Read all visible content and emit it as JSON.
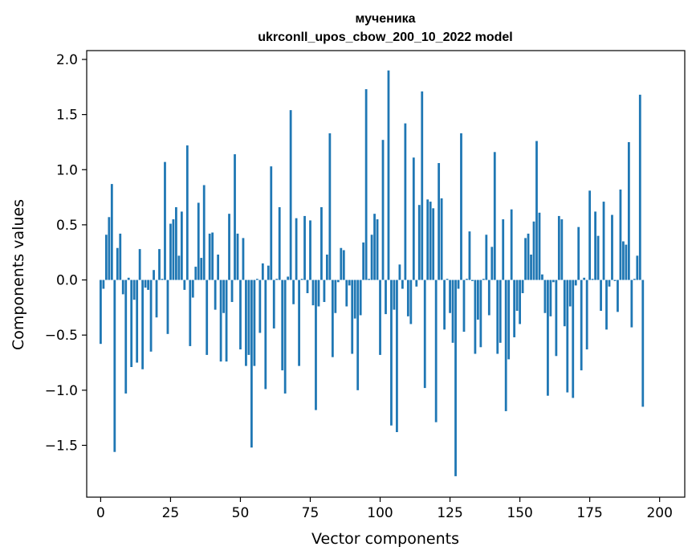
{
  "chart_data": {
    "type": "bar",
    "title": "мученика",
    "subtitle": "ukrconll_upos_cbow_200_10_2022 model",
    "xlabel": "Vector components",
    "ylabel": "Components values",
    "xlim": [
      -5,
      209
    ],
    "ylim": [
      -1.97,
      2.08
    ],
    "xticks": [
      0,
      25,
      50,
      75,
      100,
      125,
      150,
      175,
      200
    ],
    "yticks": [
      -1.5,
      -1.0,
      -0.5,
      0.0,
      0.5,
      1.0,
      1.5,
      2.0
    ],
    "ytick_labels": [
      "−1.5",
      "−1.0",
      "−0.5",
      "0.0",
      "0.5",
      "1.0",
      "1.5",
      "2.0"
    ],
    "bar_color": "#1f77b4",
    "grid": false,
    "values": [
      -0.58,
      -0.08,
      0.41,
      0.57,
      0.87,
      -1.56,
      0.29,
      0.42,
      -0.13,
      -1.03,
      0.02,
      -0.79,
      -0.18,
      -0.75,
      0.28,
      -0.81,
      -0.07,
      -0.09,
      -0.65,
      0.09,
      -0.34,
      0.28,
      0.01,
      1.07,
      -0.49,
      0.51,
      0.55,
      0.66,
      0.22,
      0.62,
      -0.09,
      1.22,
      -0.6,
      -0.16,
      0.12,
      0.7,
      0.2,
      0.86,
      -0.68,
      0.42,
      0.43,
      -0.27,
      0.23,
      -0.74,
      -0.3,
      -0.74,
      0.6,
      -0.2,
      1.14,
      0.42,
      -0.63,
      0.38,
      -0.78,
      -0.68,
      -1.52,
      -0.78,
      0.01,
      -0.48,
      0.15,
      -0.99,
      0.13,
      1.03,
      -0.44,
      0.01,
      0.66,
      -0.82,
      -1.03,
      0.03,
      1.54,
      -0.22,
      0.56,
      -0.78,
      0.01,
      0.58,
      -0.12,
      0.54,
      -0.23,
      -1.18,
      -0.24,
      0.66,
      -0.2,
      0.23,
      1.33,
      -0.7,
      -0.3,
      -0.02,
      0.29,
      0.27,
      -0.24,
      -0.05,
      -0.67,
      -0.35,
      -1.0,
      -0.32,
      0.34,
      1.73,
      0.01,
      0.41,
      0.6,
      0.55,
      -0.68,
      1.27,
      -0.31,
      1.9,
      -1.32,
      -0.27,
      -1.38,
      0.14,
      -0.08,
      1.42,
      -0.33,
      -0.4,
      1.11,
      -0.06,
      0.68,
      1.71,
      -0.98,
      0.73,
      0.71,
      0.65,
      -1.29,
      1.06,
      0.74,
      -0.45,
      0.01,
      -0.3,
      -0.57,
      -1.78,
      -0.08,
      1.33,
      -0.47,
      0.01,
      0.44,
      -0.01,
      -0.67,
      -0.36,
      -0.61,
      0.01,
      0.41,
      -0.32,
      0.3,
      1.16,
      -0.67,
      -0.57,
      0.55,
      -1.19,
      -0.72,
      0.64,
      -0.52,
      -0.28,
      -0.4,
      -0.12,
      0.38,
      0.42,
      0.23,
      0.53,
      1.26,
      0.61,
      0.05,
      -0.3,
      -1.05,
      -0.33,
      -0.02,
      -0.69,
      0.58,
      0.55,
      -0.42,
      -1.02,
      -0.24,
      -1.07,
      -0.05,
      0.48,
      -0.82,
      0.02,
      -0.63,
      0.81,
      0.01,
      0.62,
      0.4,
      -0.28,
      0.71,
      -0.45,
      -0.06,
      0.59,
      -0.01,
      -0.29,
      0.82,
      0.35,
      0.32,
      1.25,
      -0.43,
      0.01,
      0.22,
      1.68,
      -1.15
    ]
  }
}
